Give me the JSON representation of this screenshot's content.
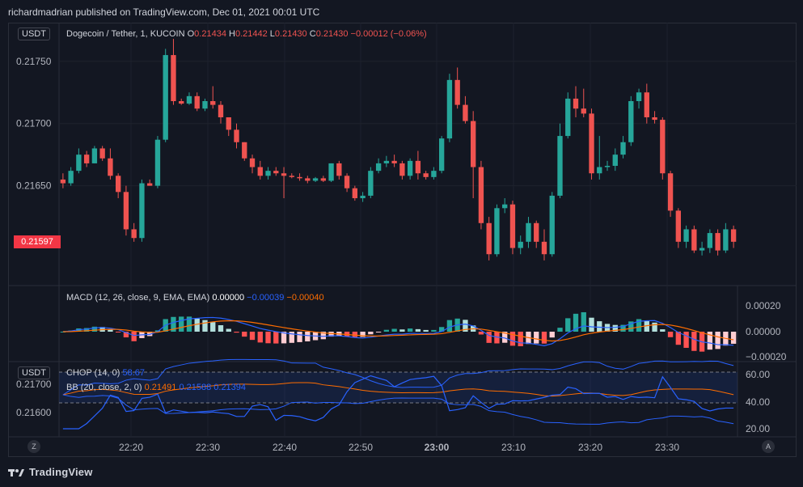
{
  "header": {
    "published_text": "richardmadrian published on TradingView.com, Dec 01, 2021 00:01 UTC"
  },
  "main_pane": {
    "currency_button": "USDT",
    "symbol": "Dogecoin / Tether, 1, KUCOIN",
    "o_label": "O",
    "o_value": "0.21434",
    "h_label": "H",
    "h_value": "0.21442",
    "l_label": "L",
    "l_value": "0.21430",
    "c_label": "C",
    "c_value": "0.21430",
    "change": "−0.00012 (−0.06%)",
    "last_price_tag": "0.21597",
    "colors": {
      "up": "#26a69a",
      "down": "#ef5350"
    }
  },
  "macd_pane": {
    "title": "MACD (12, 26, close, 9, EMA, EMA)",
    "v1": "0.00000",
    "v2": "−0.00039",
    "v3": "−0.00040",
    "ticks": [
      "0.00020",
      "0.00000",
      "−0.00020"
    ]
  },
  "chop_pane": {
    "currency_button": "USDT",
    "chop_title": "CHOP (14, 0)",
    "chop_value": "58.67",
    "bb_title": "BB (20, close, 2, 0)",
    "bb_v1": "0.21491",
    "bb_v2": "0.21588",
    "bb_v3": "0.21394",
    "left_ticks": [
      "0.21700",
      "0.21600"
    ],
    "right_ticks": [
      "60.00",
      "40.00",
      "20.00"
    ]
  },
  "footer": {
    "brand": "TradingView",
    "z_button": "Z",
    "a_button": "A"
  },
  "chart_data": {
    "type": "candlestick",
    "symbol": "Dogecoin / Tether",
    "interval": "1",
    "x_ticks": [
      "22:20",
      "22:30",
      "22:40",
      "22:50",
      "23:00",
      "23:10",
      "23:20",
      "23:30"
    ],
    "y_ticks": [
      "0.21750",
      "0.21700",
      "0.21650",
      "0.21597"
    ],
    "ylim": [
      0.21575,
      0.2177
    ],
    "candles": [
      [
        0.21655,
        0.2166,
        0.21648,
        0.21652
      ],
      [
        0.21652,
        0.21665,
        0.2165,
        0.21662
      ],
      [
        0.21662,
        0.2168,
        0.2166,
        0.21675
      ],
      [
        0.21675,
        0.21678,
        0.21665,
        0.21668
      ],
      [
        0.21668,
        0.21682,
        0.21668,
        0.2168
      ],
      [
        0.2168,
        0.21682,
        0.2167,
        0.21672
      ],
      [
        0.21672,
        0.2168,
        0.21655,
        0.21658
      ],
      [
        0.21658,
        0.2166,
        0.2164,
        0.21645
      ],
      [
        0.21645,
        0.2165,
        0.2161,
        0.21615
      ],
      [
        0.21615,
        0.2162,
        0.21605,
        0.21608
      ],
      [
        0.21608,
        0.21655,
        0.21605,
        0.21652
      ],
      [
        0.21652,
        0.21655,
        0.2165,
        0.2165
      ],
      [
        0.2165,
        0.2169,
        0.21648,
        0.21687
      ],
      [
        0.21687,
        0.2176,
        0.21685,
        0.21755
      ],
      [
        0.21755,
        0.21768,
        0.21715,
        0.21718
      ],
      [
        0.21718,
        0.2172,
        0.21715,
        0.21716
      ],
      [
        0.21716,
        0.21725,
        0.21715,
        0.21722
      ],
      [
        0.21722,
        0.21725,
        0.2171,
        0.21712
      ],
      [
        0.21712,
        0.2172,
        0.2171,
        0.21718
      ],
      [
        0.21718,
        0.2173,
        0.21712,
        0.21715
      ],
      [
        0.21715,
        0.21718,
        0.217,
        0.21705
      ],
      [
        0.21705,
        0.21705,
        0.2169,
        0.21695
      ],
      [
        0.21695,
        0.217,
        0.2168,
        0.21685
      ],
      [
        0.21685,
        0.21685,
        0.2167,
        0.21672
      ],
      [
        0.21672,
        0.21675,
        0.2166,
        0.21665
      ],
      [
        0.21665,
        0.2167,
        0.21655,
        0.21658
      ],
      [
        0.21658,
        0.21665,
        0.21655,
        0.21662
      ],
      [
        0.21662,
        0.21665,
        0.21658,
        0.2166
      ],
      [
        0.2166,
        0.21665,
        0.2164,
        0.21658
      ],
      [
        0.21658,
        0.2166,
        0.21656,
        0.21657
      ],
      [
        0.21657,
        0.2166,
        0.21654,
        0.21656
      ],
      [
        0.21656,
        0.21658,
        0.21652,
        0.21654
      ],
      [
        0.21654,
        0.21657,
        0.21653,
        0.21656
      ],
      [
        0.21656,
        0.21658,
        0.21653,
        0.21654
      ],
      [
        0.21654,
        0.21668,
        0.21653,
        0.21668
      ],
      [
        0.21668,
        0.2167,
        0.21655,
        0.21658
      ],
      [
        0.21658,
        0.2166,
        0.21645,
        0.21648
      ],
      [
        0.21648,
        0.2165,
        0.21638,
        0.2164
      ],
      [
        0.2164,
        0.21645,
        0.21637,
        0.21642
      ],
      [
        0.21642,
        0.21665,
        0.2164,
        0.21662
      ],
      [
        0.21662,
        0.21672,
        0.2166,
        0.21668
      ],
      [
        0.21668,
        0.21674,
        0.21665,
        0.2167
      ],
      [
        0.2167,
        0.21675,
        0.21665,
        0.21668
      ],
      [
        0.21668,
        0.2167,
        0.21655,
        0.21658
      ],
      [
        0.21658,
        0.21672,
        0.21655,
        0.2167
      ],
      [
        0.2167,
        0.21678,
        0.21655,
        0.2166
      ],
      [
        0.2166,
        0.21662,
        0.21655,
        0.21657
      ],
      [
        0.21657,
        0.21665,
        0.21655,
        0.21662
      ],
      [
        0.21662,
        0.2169,
        0.2166,
        0.21688
      ],
      [
        0.21688,
        0.2174,
        0.21685,
        0.21735
      ],
      [
        0.21735,
        0.21745,
        0.21712,
        0.21715
      ],
      [
        0.21715,
        0.21722,
        0.217,
        0.21702
      ],
      [
        0.21702,
        0.2171,
        0.2164,
        0.21665
      ],
      [
        0.21665,
        0.2167,
        0.21615,
        0.2162
      ],
      [
        0.2162,
        0.21625,
        0.2159,
        0.21595
      ],
      [
        0.21595,
        0.21635,
        0.21593,
        0.21632
      ],
      [
        0.21632,
        0.2164,
        0.21628,
        0.21635
      ],
      [
        0.21635,
        0.21638,
        0.21595,
        0.216
      ],
      [
        0.216,
        0.2161,
        0.21595,
        0.21605
      ],
      [
        0.21605,
        0.21625,
        0.216,
        0.2162
      ],
      [
        0.2162,
        0.21622,
        0.216,
        0.21605
      ],
      [
        0.21605,
        0.21615,
        0.2159,
        0.21595
      ],
      [
        0.21595,
        0.21645,
        0.21593,
        0.21642
      ],
      [
        0.21642,
        0.217,
        0.2164,
        0.2169
      ],
      [
        0.2169,
        0.21725,
        0.21688,
        0.2172
      ],
      [
        0.2172,
        0.2173,
        0.21705,
        0.21712
      ],
      [
        0.21712,
        0.21728,
        0.21705,
        0.21708
      ],
      [
        0.21708,
        0.21712,
        0.21655,
        0.2166
      ],
      [
        0.2166,
        0.2169,
        0.21655,
        0.21665
      ],
      [
        0.21665,
        0.2167,
        0.21662,
        0.21666
      ],
      [
        0.21666,
        0.2168,
        0.21662,
        0.21675
      ],
      [
        0.21675,
        0.2169,
        0.21672,
        0.21685
      ],
      [
        0.21685,
        0.21722,
        0.21682,
        0.21718
      ],
      [
        0.21718,
        0.21728,
        0.21712,
        0.21725
      ],
      [
        0.21725,
        0.21732,
        0.217,
        0.21705
      ],
      [
        0.21705,
        0.2171,
        0.217,
        0.21703
      ],
      [
        0.21703,
        0.21705,
        0.21655,
        0.2166
      ],
      [
        0.2166,
        0.21662,
        0.21625,
        0.2163
      ],
      [
        0.2163,
        0.21632,
        0.216,
        0.21605
      ],
      [
        0.21605,
        0.21618,
        0.216,
        0.21615
      ],
      [
        0.21615,
        0.21618,
        0.21596,
        0.21598
      ],
      [
        0.21598,
        0.21605,
        0.21594,
        0.216
      ],
      [
        0.216,
        0.21615,
        0.21596,
        0.21612
      ],
      [
        0.21612,
        0.21615,
        0.21594,
        0.21598
      ],
      [
        0.21598,
        0.2162,
        0.21596,
        0.21615
      ],
      [
        0.21615,
        0.21618,
        0.216,
        0.21605
      ]
    ]
  }
}
